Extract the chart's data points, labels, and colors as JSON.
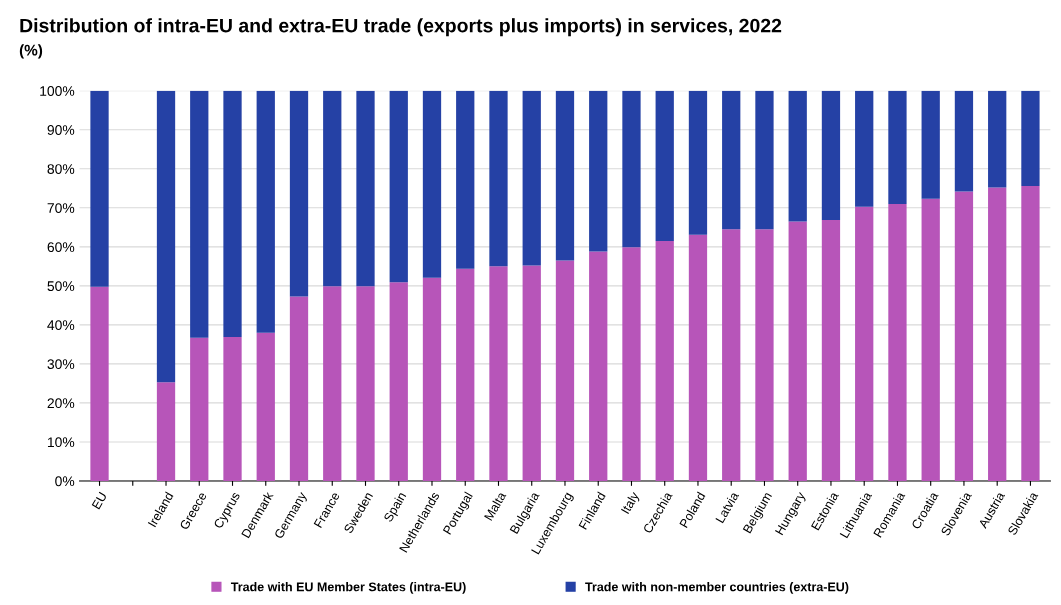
{
  "chart_data": {
    "type": "bar",
    "title": "Distribution of intra-EU and extra-EU trade (exports plus imports) in services, 2022",
    "subtitle": "(%)",
    "categories": [
      "EU",
      null,
      "Ireland",
      "Greece",
      "Cyprus",
      "Denmark",
      "Germany",
      "France",
      "Sweden",
      "Spain",
      "Netherlands",
      "Portugal",
      "Malta",
      "Bulgaria",
      "Luxembourg",
      "Finland",
      "Italy",
      "Czechia",
      "Poland",
      "Latvia",
      "Belgium",
      "Hungary",
      "Estonia",
      "Lithuania",
      "Romania",
      "Croatia",
      "Slovenia",
      "Austria",
      "Slovakia"
    ],
    "stacked": true,
    "series": [
      {
        "name": "Trade with EU Member States (intra-EU)",
        "color": "#b755b9",
        "values": [
          49.8,
          null,
          25.3,
          36.7,
          36.9,
          38.0,
          47.3,
          49.9,
          49.9,
          50.9,
          52.1,
          54.4,
          55.0,
          55.2,
          56.5,
          58.8,
          59.9,
          61.5,
          63.1,
          64.5,
          64.5,
          66.5,
          66.9,
          70.3,
          71.0,
          72.3,
          74.2,
          75.2,
          75.6
        ]
      },
      {
        "name": "Trade with non-member countries (extra-EU)",
        "color": "#2541a5",
        "values": [
          50.2,
          null,
          74.7,
          63.3,
          63.1,
          62.0,
          52.7,
          50.1,
          50.1,
          49.1,
          47.9,
          45.6,
          45.0,
          44.8,
          43.5,
          41.2,
          40.1,
          38.5,
          36.9,
          35.5,
          35.5,
          33.5,
          33.1,
          29.7,
          29.0,
          27.7,
          25.8,
          24.8,
          24.4
        ]
      }
    ],
    "ylim": [
      0,
      100
    ],
    "yticks": [
      {
        "value": 0,
        "label": "0%"
      },
      {
        "value": 10,
        "label": "10%"
      },
      {
        "value": 20,
        "label": "20%"
      },
      {
        "value": 30,
        "label": "30%"
      },
      {
        "value": 40,
        "label": "40%"
      },
      {
        "value": 50,
        "label": "50%"
      },
      {
        "value": 60,
        "label": "60%"
      },
      {
        "value": 70,
        "label": "70%"
      },
      {
        "value": 80,
        "label": "80%"
      },
      {
        "value": 90,
        "label": "90%"
      },
      {
        "value": 100,
        "label": "100%"
      }
    ],
    "grid": "y",
    "legend": "bottom"
  }
}
